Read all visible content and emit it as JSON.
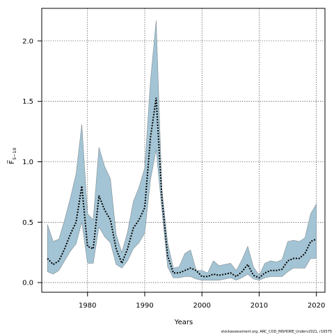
{
  "chart_data": {
    "type": "area",
    "xlabel": "Years",
    "ylabel": "F̅",
    "ylabel_sub": "5−10",
    "credit": "stockassessment.org, ARC_COD_INSHORE_Underv2021, r16575",
    "xlim": [
      1972,
      2021.5
    ],
    "ylim": [
      -0.08,
      2.27
    ],
    "x_ticks": [
      1980,
      1990,
      2000,
      2010,
      2020
    ],
    "y_ticks": [
      0.0,
      0.5,
      1.0,
      1.5,
      2.0
    ],
    "y_tick_labels": [
      "0.0",
      "0.5",
      "1.0",
      "1.5",
      "2.0"
    ],
    "grid": true,
    "series": [
      {
        "role": "estimate",
        "style": "dotted-line",
        "color": "#000000",
        "x": [
          1973,
          1974,
          1975,
          1976,
          1977,
          1978,
          1979,
          1980,
          1981,
          1982,
          1983,
          1984,
          1985,
          1986,
          1987,
          1988,
          1989,
          1990,
          1991,
          1992,
          1993,
          1994,
          1995,
          1996,
          1997,
          1998,
          1999,
          2000,
          2001,
          2002,
          2003,
          2004,
          2005,
          2006,
          2007,
          2008,
          2009,
          2010,
          2011,
          2012,
          2013,
          2014,
          2015,
          2016,
          2017,
          2018,
          2019,
          2020
        ],
        "y": [
          0.2,
          0.15,
          0.18,
          0.28,
          0.4,
          0.5,
          0.8,
          0.3,
          0.28,
          0.72,
          0.6,
          0.52,
          0.28,
          0.16,
          0.28,
          0.45,
          0.52,
          0.62,
          1.2,
          1.53,
          0.7,
          0.22,
          0.08,
          0.08,
          0.1,
          0.12,
          0.1,
          0.05,
          0.05,
          0.07,
          0.06,
          0.07,
          0.08,
          0.05,
          0.09,
          0.15,
          0.06,
          0.04,
          0.08,
          0.1,
          0.1,
          0.11,
          0.18,
          0.2,
          0.2,
          0.24,
          0.34,
          0.36
        ]
      },
      {
        "role": "upper",
        "x": [
          1973,
          1974,
          1975,
          1976,
          1977,
          1978,
          1979,
          1980,
          1981,
          1982,
          1983,
          1984,
          1985,
          1986,
          1987,
          1988,
          1989,
          1990,
          1991,
          1992,
          1993,
          1994,
          1995,
          1996,
          1997,
          1998,
          1999,
          2000,
          2001,
          2002,
          2003,
          2004,
          2005,
          2006,
          2007,
          2008,
          2009,
          2010,
          2011,
          2012,
          2013,
          2014,
          2015,
          2016,
          2017,
          2018,
          2019,
          2020
        ],
        "y": [
          0.48,
          0.34,
          0.36,
          0.52,
          0.7,
          0.9,
          1.31,
          0.57,
          0.52,
          1.12,
          0.96,
          0.86,
          0.4,
          0.25,
          0.42,
          0.67,
          0.79,
          0.95,
          1.67,
          2.17,
          0.77,
          0.33,
          0.12,
          0.13,
          0.24,
          0.27,
          0.1,
          0.1,
          0.08,
          0.18,
          0.14,
          0.15,
          0.16,
          0.1,
          0.19,
          0.3,
          0.13,
          0.06,
          0.16,
          0.18,
          0.17,
          0.19,
          0.34,
          0.35,
          0.34,
          0.37,
          0.57,
          0.65
        ]
      },
      {
        "role": "lower",
        "x": [
          1973,
          1974,
          1975,
          1976,
          1977,
          1978,
          1979,
          1980,
          1981,
          1982,
          1983,
          1984,
          1985,
          1986,
          1987,
          1988,
          1989,
          1990,
          1991,
          1992,
          1993,
          1994,
          1995,
          1996,
          1997,
          1998,
          1999,
          2000,
          2001,
          2002,
          2003,
          2004,
          2005,
          2006,
          2007,
          2008,
          2009,
          2010,
          2011,
          2012,
          2013,
          2014,
          2015,
          2016,
          2017,
          2018,
          2019,
          2020
        ],
        "y": [
          0.09,
          0.07,
          0.1,
          0.18,
          0.26,
          0.32,
          0.5,
          0.16,
          0.16,
          0.46,
          0.38,
          0.33,
          0.15,
          0.12,
          0.18,
          0.28,
          0.33,
          0.41,
          0.85,
          1.1,
          0.6,
          0.13,
          0.04,
          0.04,
          0.05,
          0.05,
          0.03,
          0.02,
          0.02,
          0.02,
          0.02,
          0.03,
          0.04,
          0.02,
          0.04,
          0.07,
          0.03,
          0.02,
          0.04,
          0.05,
          0.05,
          0.05,
          0.09,
          0.12,
          0.12,
          0.12,
          0.2,
          0.2
        ]
      }
    ],
    "band_color": "#a3c4d4"
  }
}
